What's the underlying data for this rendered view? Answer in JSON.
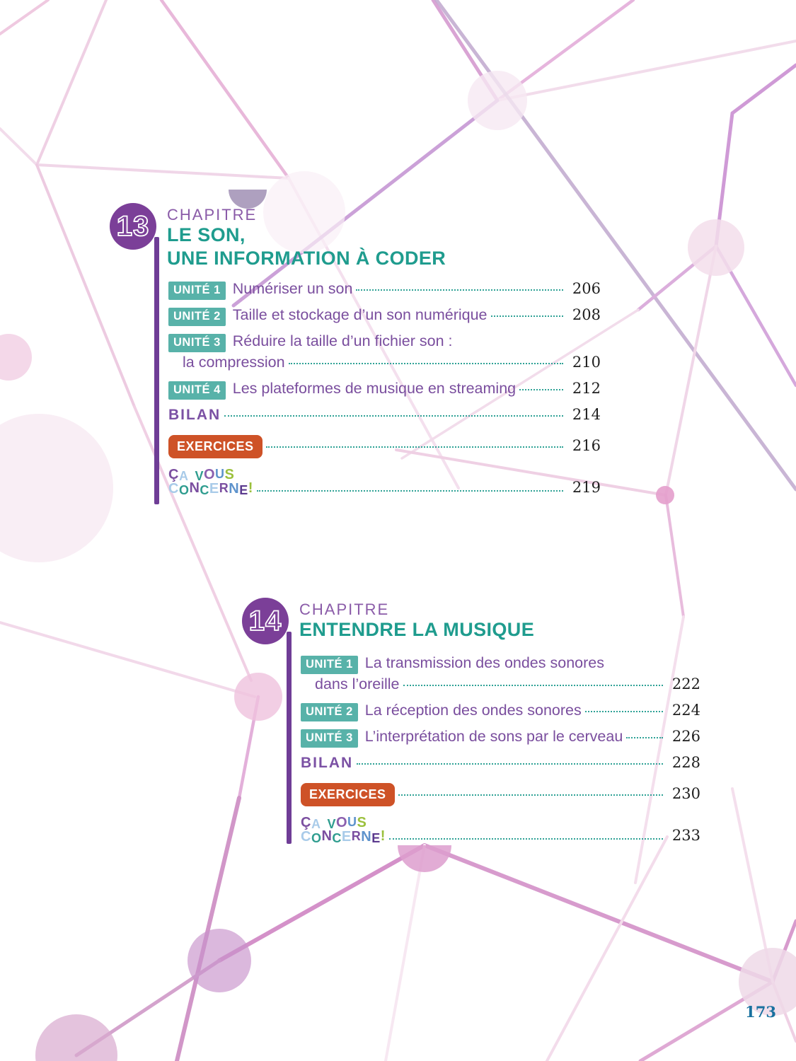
{
  "page": {
    "folio": "173"
  },
  "colors": {
    "accent_purple": "#7b3f98",
    "kicker_purple": "#8a5ba8",
    "title_teal": "#1f9c8e",
    "unit_badge_teal": "#58b2a9",
    "entry_purple": "#7a4e9e",
    "leader_teal": "#2fa296",
    "exercices_orange": "#ce5227",
    "page_number_dark": "#1f1f1f",
    "folio_blue": "#19719f"
  },
  "concerne_logo": {
    "line1": [
      {
        "ch": "Ç",
        "color": "#7b4fa0"
      },
      {
        "ch": "A",
        "color": "#a9cbe9"
      },
      {
        "ch": " ",
        "color": ""
      },
      {
        "ch": "V",
        "color": "#2f9d8f"
      },
      {
        "ch": "O",
        "color": "#8b5fae"
      },
      {
        "ch": "U",
        "color": "#5e93cc"
      },
      {
        "ch": "S",
        "color": "#9bc03c"
      }
    ],
    "line2": [
      {
        "ch": "C",
        "color": "#a9cbe9"
      },
      {
        "ch": "O",
        "color": "#2f9d8f"
      },
      {
        "ch": "N",
        "color": "#7b4fa0"
      },
      {
        "ch": "C",
        "color": "#2f9d8f"
      },
      {
        "ch": "E",
        "color": "#a9cbe9"
      },
      {
        "ch": "R",
        "color": "#7b4fa0"
      },
      {
        "ch": "N",
        "color": "#5e93cc"
      },
      {
        "ch": "E",
        "color": "#5b3a8e"
      },
      {
        "ch": "!",
        "color": "#9bc03c"
      }
    ]
  },
  "chapters": [
    {
      "number": "13",
      "kicker": "CHAPITRE",
      "title_line1": "LE SON,",
      "title_line2": "UNE INFORMATION À CODER",
      "entries": [
        {
          "badge": "UNITÉ 1",
          "text": "Numériser un son",
          "page": "206"
        },
        {
          "badge": "UNITÉ 2",
          "text": "Taille et stockage d’un son numérique",
          "page": "208"
        },
        {
          "badge": "UNITÉ 3",
          "text": "Réduire la taille d’un fichier son :",
          "text2": "la compression",
          "page": "210"
        },
        {
          "badge": "UNITÉ 4",
          "text": "Les plateformes de musique en streaming",
          "page": "212"
        },
        {
          "label": "BILAN",
          "page": "214"
        },
        {
          "label": "EXERCICES",
          "page": "216"
        },
        {
          "label": "ÇA VOUS CONCERNE !",
          "page": "219"
        }
      ]
    },
    {
      "number": "14",
      "kicker": "CHAPITRE",
      "title_line1": "ENTENDRE LA MUSIQUE",
      "title_line2": "",
      "entries": [
        {
          "badge": "UNITÉ 1",
          "text": "La transmission des ondes sonores",
          "text2": "dans l’oreille",
          "page": "222"
        },
        {
          "badge": "UNITÉ 2",
          "text": "La réception des ondes sonores",
          "page": "224"
        },
        {
          "badge": "UNITÉ 3",
          "text": "L’interprétation de sons par le cerveau",
          "page": "226"
        },
        {
          "label": "BILAN",
          "page": "228"
        },
        {
          "label": "EXERCICES",
          "page": "230"
        },
        {
          "label": "ÇA VOUS CONCERNE !",
          "page": "233"
        }
      ]
    }
  ]
}
